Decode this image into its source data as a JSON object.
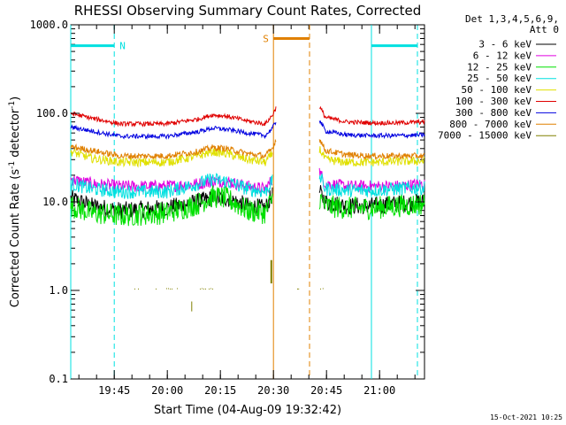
{
  "chart_data": {
    "type": "line",
    "title": "RHESSI Observing Summary Count Rates, Corrected",
    "xlabel": "Start Time (04-Aug-09 19:32:42)",
    "ylabel_main": "Corrected Count Rate (s",
    "ylabel_sup1": "-1",
    "ylabel_mid": " detector",
    "ylabel_sup2": "-1",
    "ylabel_end": ")",
    "yscale": "log",
    "ylim": [
      0.1,
      1000
    ],
    "y_ticks": [
      {
        "value": 1000,
        "label": "1000.0"
      },
      {
        "value": 100,
        "label": "100.0"
      },
      {
        "value": 10,
        "label": "10.0"
      },
      {
        "value": 1,
        "label": "1.0"
      },
      {
        "value": 0.1,
        "label": "0.1"
      }
    ],
    "xlim_minutes": [
      0,
      100
    ],
    "x_ticks": [
      {
        "minute": 12.3,
        "label": "19:45"
      },
      {
        "minute": 27.3,
        "label": "20:00"
      },
      {
        "minute": 42.3,
        "label": "20:15"
      },
      {
        "minute": 57.3,
        "label": "20:30"
      },
      {
        "minute": 72.3,
        "label": "20:45"
      },
      {
        "minute": 87.3,
        "label": "21:00"
      }
    ],
    "legend": {
      "placement": "right",
      "header1": "Det 1,3,4,5,6,9,",
      "header2": "Att 0"
    },
    "gap_minutes": [
      57.3,
      70.3
    ],
    "series": [
      {
        "name": "3 - 6 keV",
        "color": "#000000",
        "before": [
          [
            0,
            11
          ],
          [
            6,
            9
          ],
          [
            14,
            8
          ],
          [
            27,
            8.5
          ],
          [
            36,
            10
          ],
          [
            40,
            11
          ],
          [
            44,
            11
          ],
          [
            50,
            9
          ],
          [
            55,
            8.5
          ],
          [
            57,
            12
          ]
        ],
        "after": [
          [
            70.3,
            13
          ],
          [
            72,
            10
          ],
          [
            78,
            9
          ],
          [
            85,
            9
          ],
          [
            92,
            9.5
          ],
          [
            100,
            10
          ]
        ]
      },
      {
        "name": "6 - 12 keV",
        "color": "#e000e0",
        "before": [
          [
            0,
            18
          ],
          [
            6,
            16
          ],
          [
            14,
            15
          ],
          [
            27,
            15
          ],
          [
            36,
            16
          ],
          [
            40,
            17
          ],
          [
            44,
            17
          ],
          [
            50,
            15
          ],
          [
            55,
            14
          ],
          [
            57,
            18
          ]
        ],
        "after": [
          [
            70.3,
            22
          ],
          [
            72,
            16
          ],
          [
            78,
            15
          ],
          [
            85,
            15
          ],
          [
            92,
            15
          ],
          [
            100,
            16
          ]
        ]
      },
      {
        "name": "12 - 25 keV",
        "color": "#00e000",
        "before": [
          [
            0,
            9
          ],
          [
            6,
            7.5
          ],
          [
            14,
            7
          ],
          [
            27,
            7.5
          ],
          [
            36,
            9.5
          ],
          [
            40,
            11.5
          ],
          [
            44,
            11
          ],
          [
            50,
            8
          ],
          [
            55,
            7.5
          ],
          [
            57,
            11
          ]
        ],
        "after": [
          [
            70.3,
            11
          ],
          [
            72,
            9
          ],
          [
            78,
            8.5
          ],
          [
            85,
            8.5
          ],
          [
            92,
            9
          ],
          [
            100,
            9.5
          ]
        ]
      },
      {
        "name": "25 - 50 keV",
        "color": "#00e0e0",
        "before": [
          [
            0,
            16
          ],
          [
            6,
            14
          ],
          [
            14,
            13
          ],
          [
            27,
            13
          ],
          [
            36,
            16
          ],
          [
            40,
            18
          ],
          [
            44,
            17
          ],
          [
            50,
            14
          ],
          [
            55,
            13
          ],
          [
            57,
            17
          ]
        ],
        "after": [
          [
            70.3,
            20
          ],
          [
            72,
            14
          ],
          [
            78,
            13.5
          ],
          [
            85,
            13.5
          ],
          [
            92,
            14
          ],
          [
            100,
            14.5
          ]
        ]
      },
      {
        "name": "50 - 100 keV",
        "color": "#e0e000",
        "before": [
          [
            0,
            37
          ],
          [
            6,
            31
          ],
          [
            14,
            28
          ],
          [
            27,
            28
          ],
          [
            36,
            33
          ],
          [
            40,
            37
          ],
          [
            44,
            35
          ],
          [
            50,
            30
          ],
          [
            55,
            28
          ],
          [
            57,
            35
          ]
        ],
        "after": [
          [
            70.3,
            40
          ],
          [
            72,
            30
          ],
          [
            78,
            28
          ],
          [
            85,
            28
          ],
          [
            92,
            28.5
          ],
          [
            100,
            29
          ]
        ]
      },
      {
        "name": "100 - 300 keV",
        "color": "#e00000",
        "before": [
          [
            0,
            100
          ],
          [
            6,
            88
          ],
          [
            14,
            76
          ],
          [
            27,
            76
          ],
          [
            36,
            86
          ],
          [
            40,
            96
          ],
          [
            44,
            93
          ],
          [
            50,
            82
          ],
          [
            55,
            76
          ],
          [
            57,
            95
          ],
          [
            58,
            115
          ]
        ],
        "after": [
          [
            70.3,
            120
          ],
          [
            72,
            90
          ],
          [
            78,
            80
          ],
          [
            85,
            78
          ],
          [
            92,
            78
          ],
          [
            100,
            80
          ]
        ]
      },
      {
        "name": "300 - 800 keV",
        "color": "#0000e0",
        "before": [
          [
            0,
            70
          ],
          [
            6,
            63
          ],
          [
            14,
            55
          ],
          [
            27,
            55
          ],
          [
            36,
            62
          ],
          [
            40,
            68
          ],
          [
            44,
            66
          ],
          [
            50,
            60
          ],
          [
            55,
            56
          ],
          [
            57,
            68
          ],
          [
            58,
            80
          ]
        ],
        "after": [
          [
            70.3,
            85
          ],
          [
            72,
            63
          ],
          [
            78,
            57
          ],
          [
            85,
            56
          ],
          [
            92,
            56
          ],
          [
            100,
            57
          ]
        ]
      },
      {
        "name": "800 - 7000 keV",
        "color": "#e08000",
        "before": [
          [
            0,
            42
          ],
          [
            6,
            38
          ],
          [
            14,
            33
          ],
          [
            27,
            33
          ],
          [
            36,
            37
          ],
          [
            40,
            41
          ],
          [
            44,
            40
          ],
          [
            50,
            35
          ],
          [
            55,
            33
          ],
          [
            57,
            40
          ],
          [
            58,
            50
          ]
        ],
        "after": [
          [
            70.3,
            52
          ],
          [
            72,
            38
          ],
          [
            78,
            34
          ],
          [
            85,
            33
          ],
          [
            92,
            33
          ],
          [
            100,
            33
          ]
        ]
      },
      {
        "name": "7000 - 15000 keV",
        "color": "#808000",
        "before": [],
        "after": []
      }
    ],
    "annotations": [
      {
        "label": "N",
        "color": "#00e0e0",
        "bars": [
          [
            0,
            12.3
          ],
          [
            85,
            98
          ]
        ],
        "y": 580
      },
      {
        "label": "S",
        "color": "#e08000",
        "bars": [
          [
            57.3,
            67.5
          ]
        ],
        "y": 700
      }
    ],
    "markers": [
      {
        "color": "#00e0e0",
        "style": "solid",
        "minute": 0
      },
      {
        "color": "#00e0e0",
        "style": "dashed",
        "minute": 12.3
      },
      {
        "color": "#e08000",
        "style": "solid",
        "minute": 57.3
      },
      {
        "color": "#e08000",
        "style": "dashed",
        "minute": 67.5
      },
      {
        "color": "#00e0e0",
        "style": "solid",
        "minute": 85
      },
      {
        "color": "#00e0e0",
        "style": "dashed",
        "minute": 98
      }
    ],
    "footer_date": "15-Oct-2021 10:25"
  }
}
